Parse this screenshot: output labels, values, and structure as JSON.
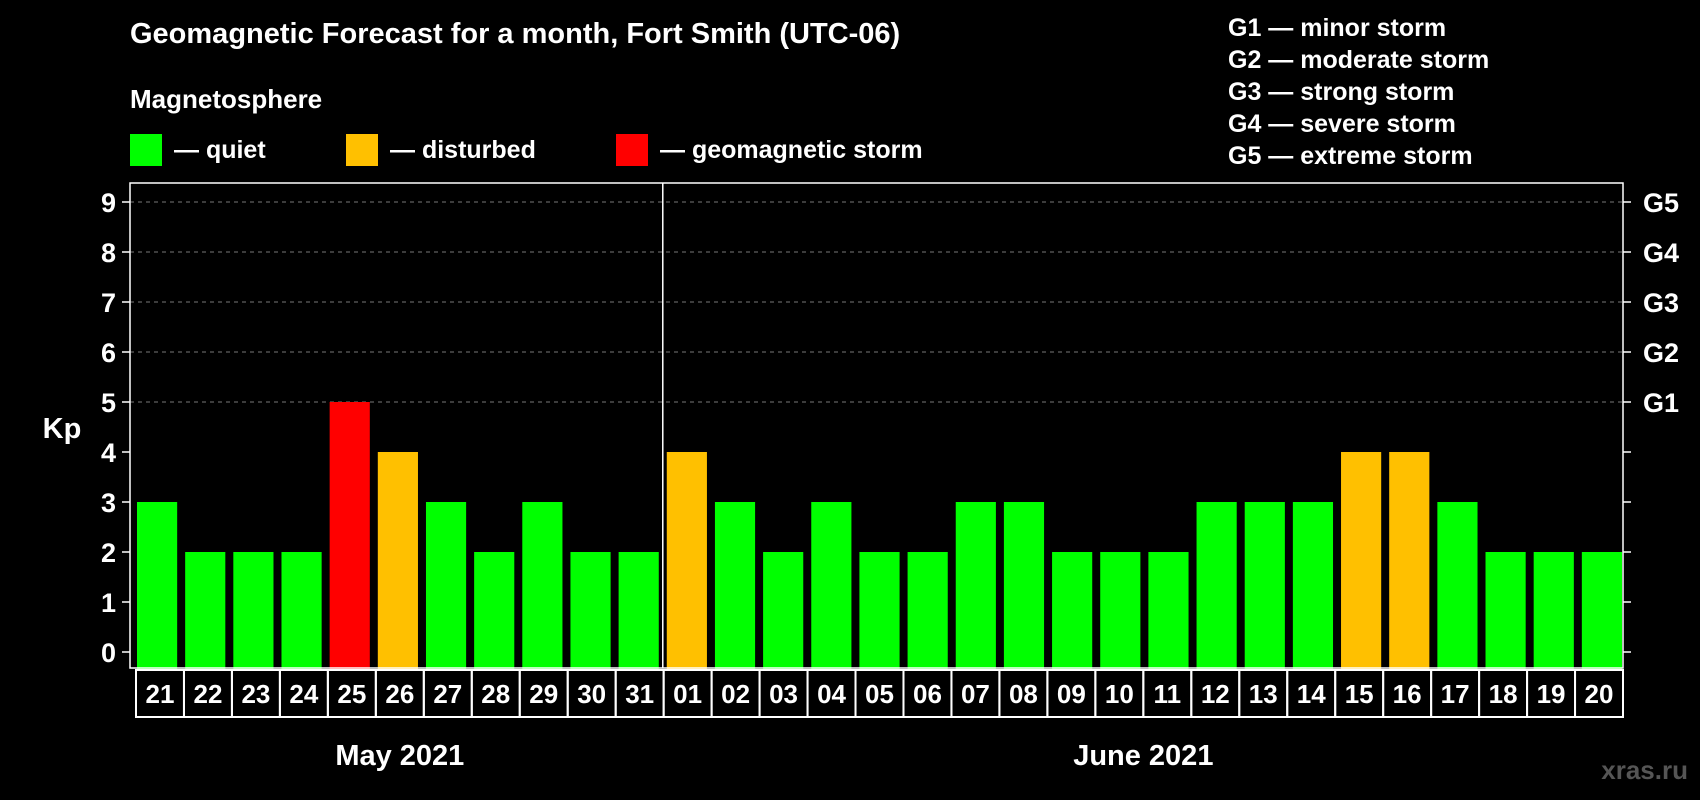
{
  "title": "Geomagnetic Forecast for a month, Fort Smith (UTC-06)",
  "legend": {
    "heading": "Magnetosphere",
    "items": [
      {
        "label": "— quiet",
        "color": "#00ff00"
      },
      {
        "label": "— disturbed",
        "color": "#ffc000"
      },
      {
        "label": "— geomagnetic storm",
        "color": "#ff0000"
      }
    ]
  },
  "storm_scale": [
    "G1 — minor storm",
    "G2 — moderate storm",
    "G3 — strong storm",
    "G4 — severe storm",
    "G5 — extreme storm"
  ],
  "watermark": "xras.ru",
  "chart_data": {
    "type": "bar",
    "ylabel": "Kp",
    "ylim": [
      0,
      9
    ],
    "yticks": [
      "0",
      "1",
      "2",
      "3",
      "4",
      "5",
      "6",
      "7",
      "8",
      "9"
    ],
    "right_axis_labels": [
      {
        "kp": 5,
        "label": "G1"
      },
      {
        "kp": 6,
        "label": "G2"
      },
      {
        "kp": 7,
        "label": "G3"
      },
      {
        "kp": 8,
        "label": "G4"
      },
      {
        "kp": 9,
        "label": "G5"
      }
    ],
    "grid": "dashed horizontal at Kp 5-9",
    "categories": [
      "21",
      "22",
      "23",
      "24",
      "25",
      "26",
      "27",
      "28",
      "29",
      "30",
      "31",
      "01",
      "02",
      "03",
      "04",
      "05",
      "06",
      "07",
      "08",
      "09",
      "10",
      "11",
      "12",
      "13",
      "14",
      "15",
      "16",
      "17",
      "18",
      "19",
      "20"
    ],
    "values": [
      3,
      2,
      2,
      2,
      5,
      4,
      3,
      2,
      3,
      2,
      2,
      4,
      3,
      2,
      3,
      2,
      2,
      3,
      3,
      2,
      2,
      2,
      3,
      3,
      3,
      4,
      4,
      3,
      2,
      2,
      2
    ],
    "bar_colors": [
      "#00ff00",
      "#00ff00",
      "#00ff00",
      "#00ff00",
      "#ff0000",
      "#ffc000",
      "#00ff00",
      "#00ff00",
      "#00ff00",
      "#00ff00",
      "#00ff00",
      "#ffc000",
      "#00ff00",
      "#00ff00",
      "#00ff00",
      "#00ff00",
      "#00ff00",
      "#00ff00",
      "#00ff00",
      "#00ff00",
      "#00ff00",
      "#00ff00",
      "#00ff00",
      "#00ff00",
      "#00ff00",
      "#ffc000",
      "#ffc000",
      "#00ff00",
      "#00ff00",
      "#00ff00",
      "#00ff00"
    ],
    "month_groups": [
      {
        "label": "May 2021",
        "count": 11
      },
      {
        "label": "June 2021",
        "count": 20
      }
    ]
  }
}
